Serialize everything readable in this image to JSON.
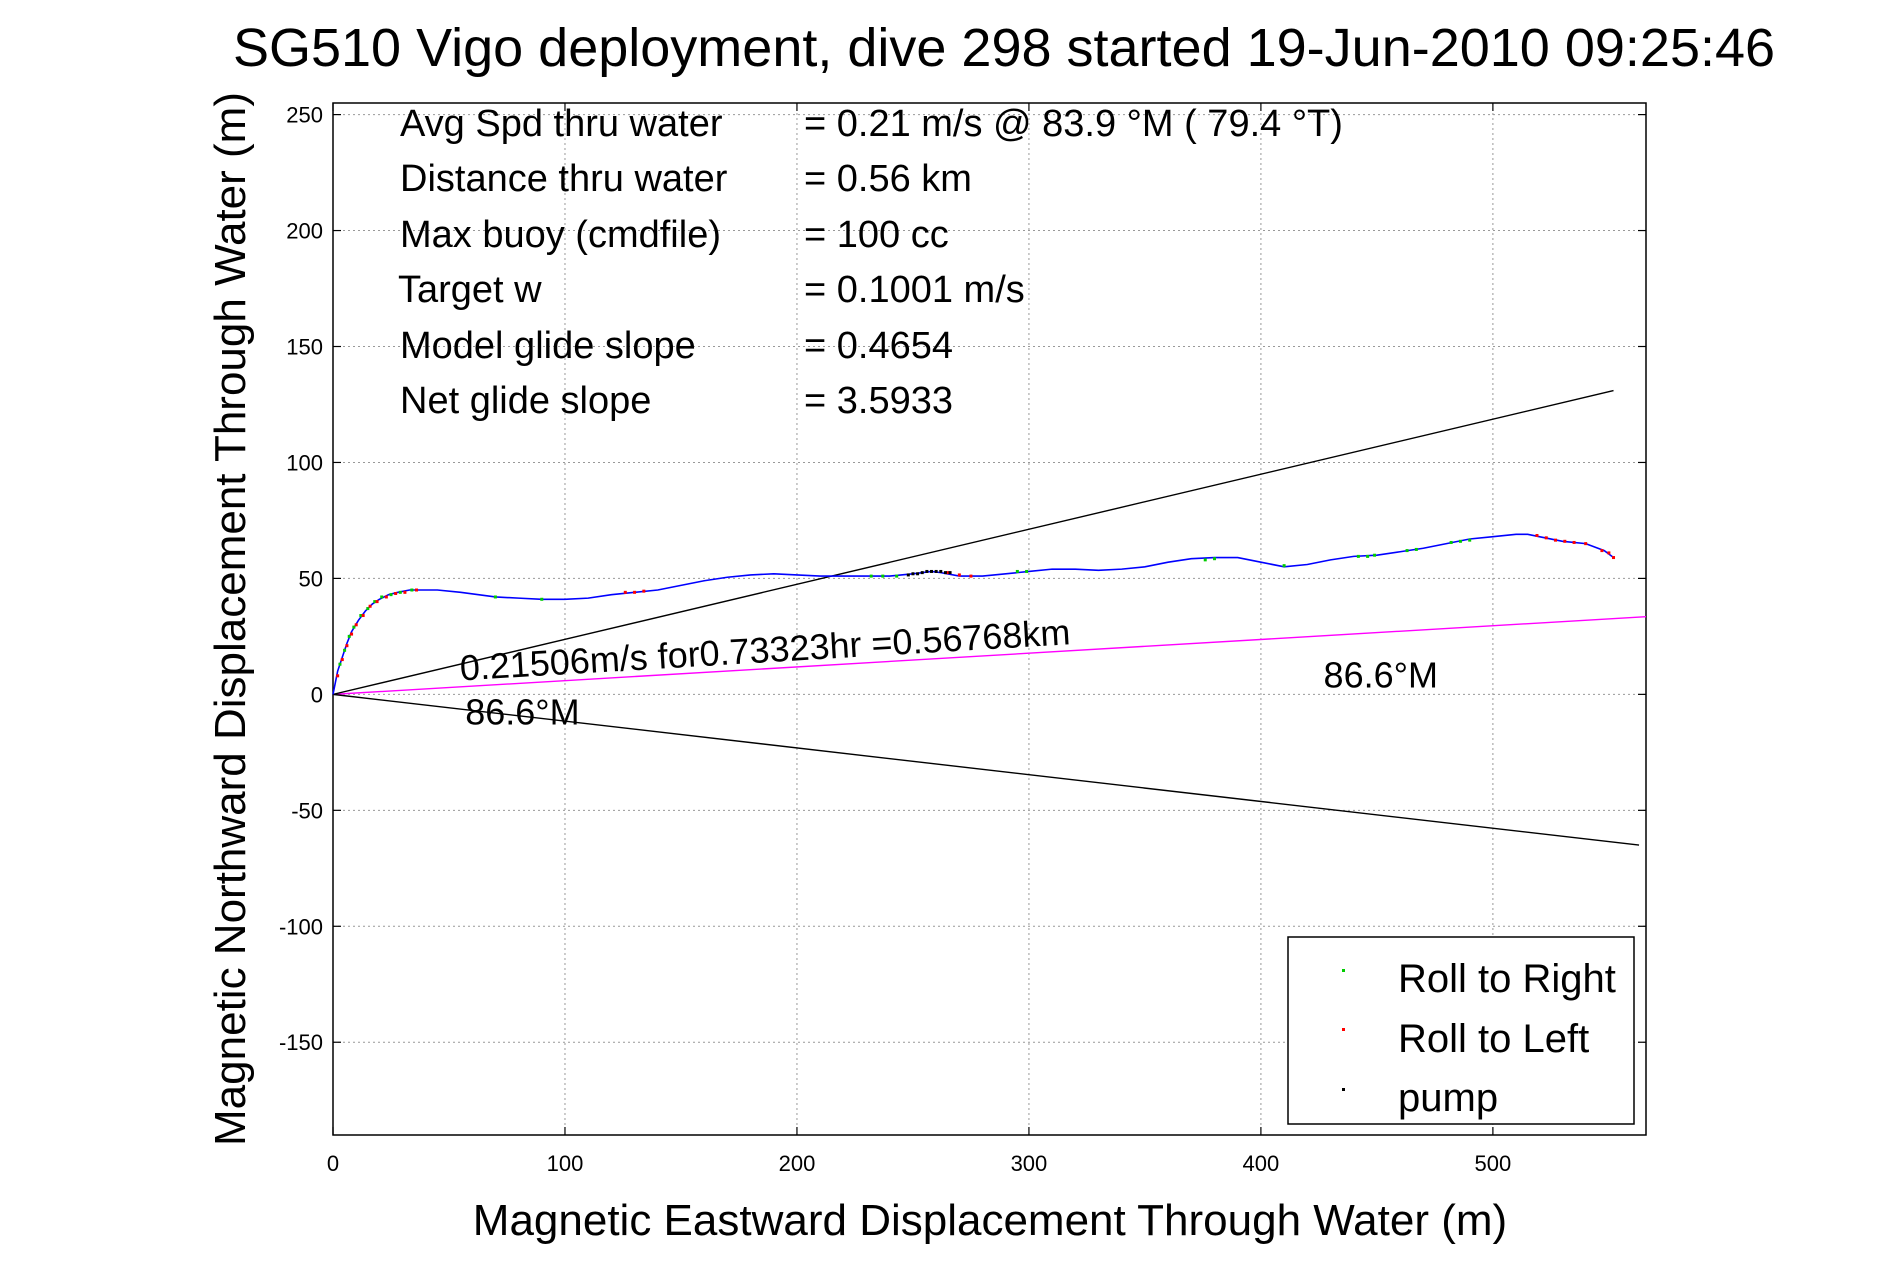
{
  "chart_data": {
    "type": "line",
    "title": "SG510 Vigo deployment, dive 298 started 19-Jun-2010 09:25:46",
    "xlabel": "Magnetic Eastward Displacement Through Water (m)",
    "ylabel": "Magnetic Northward Displacement Through Water (m)",
    "xlim": [
      0,
      566
    ],
    "ylim": [
      -190,
      255
    ],
    "xticks": [
      0,
      100,
      200,
      300,
      400,
      500
    ],
    "yticks": [
      -150,
      -100,
      -50,
      0,
      50,
      100,
      150,
      200,
      250
    ],
    "grid": true,
    "stats": [
      {
        "label": "Avg Spd thru water",
        "value": "=  0.21 m/s @  83.9 °M ( 79.4 °T)"
      },
      {
        "label": "Distance thru water",
        "value": "=  0.56 km"
      },
      {
        "label": "Max buoy (cmdfile)",
        "value": "= 100 cc"
      },
      {
        "label": "Target w",
        "value": "= 0.1001 m/s"
      },
      {
        "label": "Model glide slope",
        "value": "= 0.4654"
      },
      {
        "label": "Net glide slope",
        "value": "= 3.5933"
      }
    ],
    "annotations": [
      {
        "text": "0.21506m/s for0.73323hr =0.56768km",
        "x": 55,
        "y": 6
      },
      {
        "text": "86.6°M",
        "x": 57,
        "y": -13
      },
      {
        "text": "86.6°M",
        "x": 427,
        "y": 3
      }
    ],
    "reference_lines": [
      {
        "name": "heading",
        "color": "#ff00ff",
        "x": [
          0,
          566
        ],
        "y": [
          0,
          33.5
        ]
      },
      {
        "name": "upper-bound",
        "color": "#000000",
        "x": [
          0,
          552
        ],
        "y": [
          0,
          131
        ]
      },
      {
        "name": "lower-bound",
        "color": "#000000",
        "x": [
          0,
          563
        ],
        "y": [
          0,
          -65
        ]
      }
    ],
    "track": {
      "color": "#0000ff",
      "x": [
        0,
        1,
        2,
        4,
        6,
        8,
        11,
        14,
        17,
        20,
        24,
        28,
        33,
        38,
        45,
        55,
        70,
        80,
        90,
        100,
        110,
        120,
        130,
        140,
        150,
        160,
        170,
        180,
        190,
        200,
        210,
        220,
        230,
        240,
        250,
        258,
        262,
        270,
        280,
        290,
        300,
        310,
        320,
        330,
        340,
        350,
        360,
        370,
        380,
        390,
        400,
        410,
        420,
        430,
        440,
        450,
        460,
        470,
        480,
        490,
        500,
        510,
        515,
        520,
        530,
        540,
        548,
        552
      ],
      "y": [
        0,
        5,
        10,
        16,
        22,
        27,
        32,
        36,
        39,
        41,
        43,
        44,
        45,
        45,
        45,
        44,
        42,
        41.5,
        41,
        41,
        41.5,
        43,
        44,
        45,
        47,
        49,
        50.5,
        51.5,
        52,
        51.5,
        51,
        51,
        51,
        51,
        52,
        53,
        52.5,
        51,
        51,
        52,
        53,
        54,
        54,
        53.5,
        54,
        55,
        57,
        58.5,
        59,
        59,
        57,
        55,
        56,
        58,
        59.5,
        60,
        61.5,
        63,
        65,
        67,
        68,
        69,
        69,
        68,
        66,
        65,
        62,
        59
      ]
    },
    "roll_right": {
      "color": "#00cc00",
      "x": [
        3,
        5,
        7,
        9,
        12,
        15,
        18,
        21,
        25,
        29,
        34,
        70,
        90,
        232,
        237,
        243,
        295,
        299,
        376,
        380,
        410,
        442,
        446,
        449,
        463,
        467,
        482,
        486,
        490
      ],
      "y": [
        13,
        19,
        25,
        29,
        34,
        37,
        40,
        42,
        43,
        44,
        45,
        42,
        41,
        51,
        51,
        51,
        53,
        53,
        58,
        58.5,
        55.5,
        59.5,
        59.5,
        60,
        62,
        62.5,
        65.5,
        66,
        66.5
      ]
    },
    "roll_left": {
      "color": "#ff0000",
      "x": [
        2,
        4,
        6,
        8,
        10,
        13,
        16,
        19,
        23,
        27,
        31,
        36,
        126,
        130,
        134,
        265,
        270,
        275,
        519,
        523,
        527,
        531,
        535,
        540,
        547,
        550,
        552
      ],
      "y": [
        8,
        15,
        21,
        26,
        30,
        34,
        38,
        40,
        42,
        43.5,
        44,
        45,
        44,
        44,
        44.5,
        52.5,
        51.5,
        51,
        68.5,
        67.5,
        66.5,
        66,
        65.5,
        65,
        62,
        61,
        59
      ]
    },
    "pump": {
      "color": "#000000",
      "x": [
        248,
        250,
        252,
        254,
        256,
        258,
        260,
        262,
        264,
        266
      ],
      "y": [
        51.5,
        52,
        52,
        52.5,
        53,
        53,
        53,
        53,
        52.5,
        52.5
      ]
    },
    "legend": {
      "placement": "bottom-right",
      "entries": [
        {
          "name": "Roll to Right",
          "color": "#00cc00"
        },
        {
          "name": "Roll to Left",
          "color": "#ff0000"
        },
        {
          "name": "pump",
          "color": "#000000"
        }
      ]
    }
  }
}
